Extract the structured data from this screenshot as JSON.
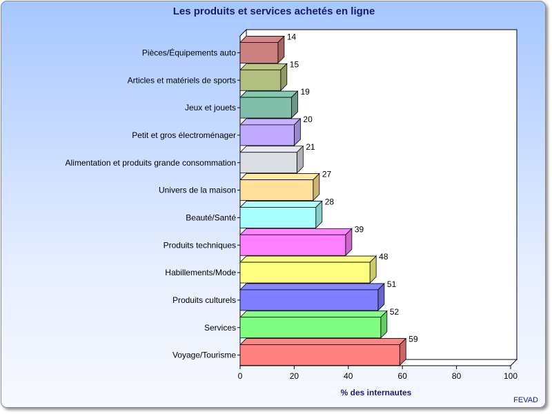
{
  "chart_data": {
    "type": "bar",
    "orientation": "horizontal",
    "title": "Les produits et services achetés en ligne",
    "xlabel": "% des internautes",
    "ylabel": "",
    "xlim": [
      0,
      100
    ],
    "ticks": [
      "0",
      "20",
      "40",
      "60",
      "80",
      "100"
    ],
    "tick_values": [
      0,
      20,
      40,
      60,
      80,
      100
    ],
    "grid": false,
    "legend": "none",
    "source": "FEVAD",
    "categories": [
      "Pièces/Équipements auto",
      "Articles et matériels de sports",
      "Jeux et jouets",
      "Petit et gros électroménager",
      "Alimentation et produits grande consommation",
      "Univers de la maison",
      "Beauté/Santé",
      "Produits techniques",
      "Habillements/Mode",
      "Produits culturels",
      "Services",
      "Voyage/Tourisme"
    ],
    "values": [
      14,
      15,
      19,
      20,
      21,
      27,
      28,
      39,
      48,
      51,
      52,
      59
    ],
    "value_labels": [
      "14",
      "15",
      "19",
      "20",
      "21",
      "27",
      "28",
      "39",
      "48",
      "51",
      "52",
      "59"
    ],
    "colors": [
      "#cc8080",
      "#b3bf80",
      "#80bfaa",
      "#bfaaff",
      "#dadde2",
      "#ffdf99",
      "#aaffff",
      "#ff80ff",
      "#ffff80",
      "#8080ff",
      "#80ff80",
      "#ff8080"
    ]
  }
}
